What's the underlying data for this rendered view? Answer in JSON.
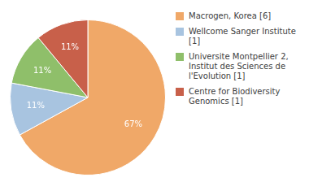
{
  "chart_data": {
    "type": "pie",
    "categories": [
      "Macrogen, Korea [6]",
      "Wellcome Sanger Institute [1]",
      "Universite Montpellier 2,\nInstitut des Sciences de\nl'Evolution [1]",
      "Centre for Biodiversity\nGenomics [1]"
    ],
    "values": [
      67,
      11,
      11,
      11
    ],
    "value_labels": [
      "67%",
      "11%",
      "11%",
      "11%"
    ],
    "colors": [
      "#f0a868",
      "#a8c4e0",
      "#8fbf6a",
      "#c8604a"
    ],
    "data_labels": true,
    "legend": "right"
  }
}
